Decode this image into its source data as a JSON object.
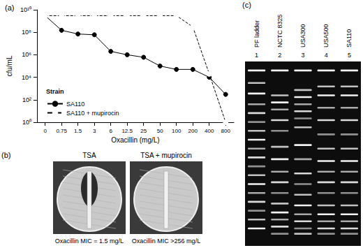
{
  "chart_data": {
    "type": "line",
    "title": "(a)",
    "x_label": "Oxacillin (mg/L)",
    "y_label": "cfu/mL",
    "categories": [
      "0",
      "0.75",
      "1.5",
      "3",
      "6",
      "12.5",
      "25",
      "50",
      "100",
      "200",
      "400",
      "800"
    ],
    "series": [
      {
        "name": "SA110",
        "color": "#000000",
        "marker": "filled_circle",
        "line_style": "solid",
        "values": [
          3000000000,
          150000000,
          70000000,
          60000000,
          2000000,
          1000000,
          600000,
          100000,
          50000,
          50000,
          10000,
          300
        ]
      },
      {
        "name": "SA110 + mupirocin",
        "color": "#000000",
        "marker": "open_circle",
        "line_style": "dashed",
        "values": [
          3000000000,
          3000000000,
          3000000000,
          3000000000,
          3000000000,
          3000000000,
          3000000000,
          3000000000,
          3000000000,
          300000000,
          20000,
          1
        ]
      }
    ],
    "log": "y",
    "ylim": [
      1,
      10000000000
    ],
    "yticks": [
      {
        "value": 1,
        "label": "10⁰"
      },
      {
        "value": 100,
        "label": "10²"
      },
      {
        "value": 10000,
        "label": "10⁴"
      },
      {
        "value": 1000000,
        "label": "10⁶"
      },
      {
        "value": 100000000,
        "label": "10⁸"
      },
      {
        "value": 10000000000,
        "label": "10¹⁰"
      }
    ],
    "grid": false,
    "legend": "lower left",
    "legend_title": "Strain"
  },
  "panel_b": {
    "title": "(b)",
    "plates": [
      {
        "label": "TSA",
        "caption": "Oxacillin MIC = 1.5 mg/L"
      },
      {
        "label": "TSA + mupirocin",
        "caption": "Oxacillin MIC >256 mg/L"
      }
    ]
  },
  "panel_c": {
    "title": "(c)",
    "lanes": [
      {
        "number": 1,
        "label": "PF ladder"
      },
      {
        "number": 2,
        "label": "NCTC 8325"
      },
      {
        "number": 3,
        "label": "USA300"
      },
      {
        "number": 4,
        "label": "USA500"
      },
      {
        "number": 5,
        "label": "SA110"
      }
    ]
  }
}
